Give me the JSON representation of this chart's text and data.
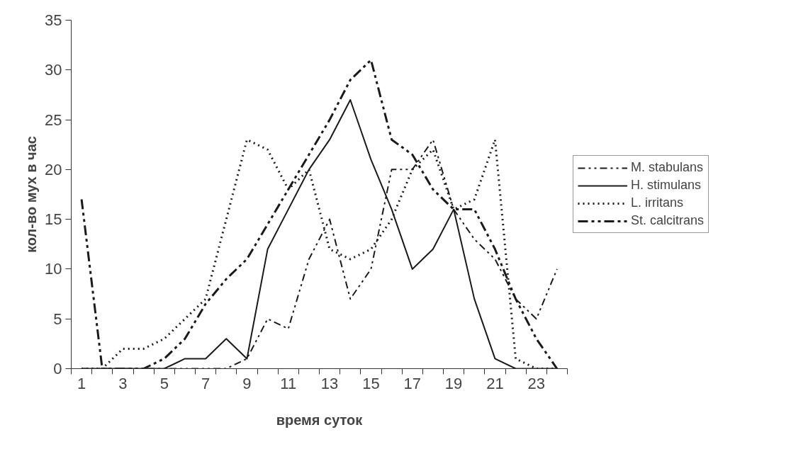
{
  "chart_data": {
    "type": "line",
    "xlabel": "время суток",
    "ylabel": "кол-во мух в час",
    "x": [
      1,
      2,
      3,
      4,
      5,
      6,
      7,
      8,
      9,
      10,
      11,
      12,
      13,
      14,
      15,
      16,
      17,
      18,
      19,
      20,
      21,
      22,
      23,
      24
    ],
    "xlim": [
      0.5,
      24.5
    ],
    "xticks": [
      1,
      3,
      5,
      7,
      9,
      11,
      13,
      15,
      17,
      19,
      21,
      23
    ],
    "ylim": [
      0,
      35
    ],
    "yticks": [
      0,
      5,
      10,
      15,
      20,
      25,
      30,
      35
    ],
    "grid": false,
    "legend": "right",
    "series": [
      {
        "name": "M. stabulans",
        "color": "#1a1a1a",
        "line_style": "dashdotdot",
        "values": [
          0,
          0,
          0,
          0,
          0,
          0,
          0,
          0,
          1,
          5,
          4,
          11,
          15,
          7,
          10,
          20,
          20,
          23,
          16,
          13,
          11,
          7,
          5,
          10
        ]
      },
      {
        "name": "H. stimulans",
        "color": "#1a1a1a",
        "line_style": "solid",
        "values": [
          0,
          0,
          0,
          0,
          0,
          1,
          1,
          3,
          1,
          12,
          16,
          20,
          23,
          27,
          21,
          16,
          10,
          12,
          16,
          7,
          1,
          0,
          0,
          0
        ]
      },
      {
        "name": "L. irritans",
        "color": "#1a1a1a",
        "line_style": "dotted",
        "values": [
          0,
          0,
          2,
          2,
          3,
          5,
          7,
          15,
          23,
          22,
          18,
          20,
          12,
          11,
          12,
          15,
          20,
          22,
          16,
          17,
          23,
          1,
          0,
          0
        ]
      },
      {
        "name": "St. calcitrans",
        "color": "#1a1a1a",
        "line_style": "dashdot",
        "values": [
          17,
          0,
          0,
          0,
          1,
          3,
          6.5,
          9,
          11,
          14.5,
          18,
          21.5,
          25,
          29,
          31,
          23,
          21.5,
          18,
          16,
          16,
          12,
          7,
          3,
          0
        ]
      }
    ]
  }
}
